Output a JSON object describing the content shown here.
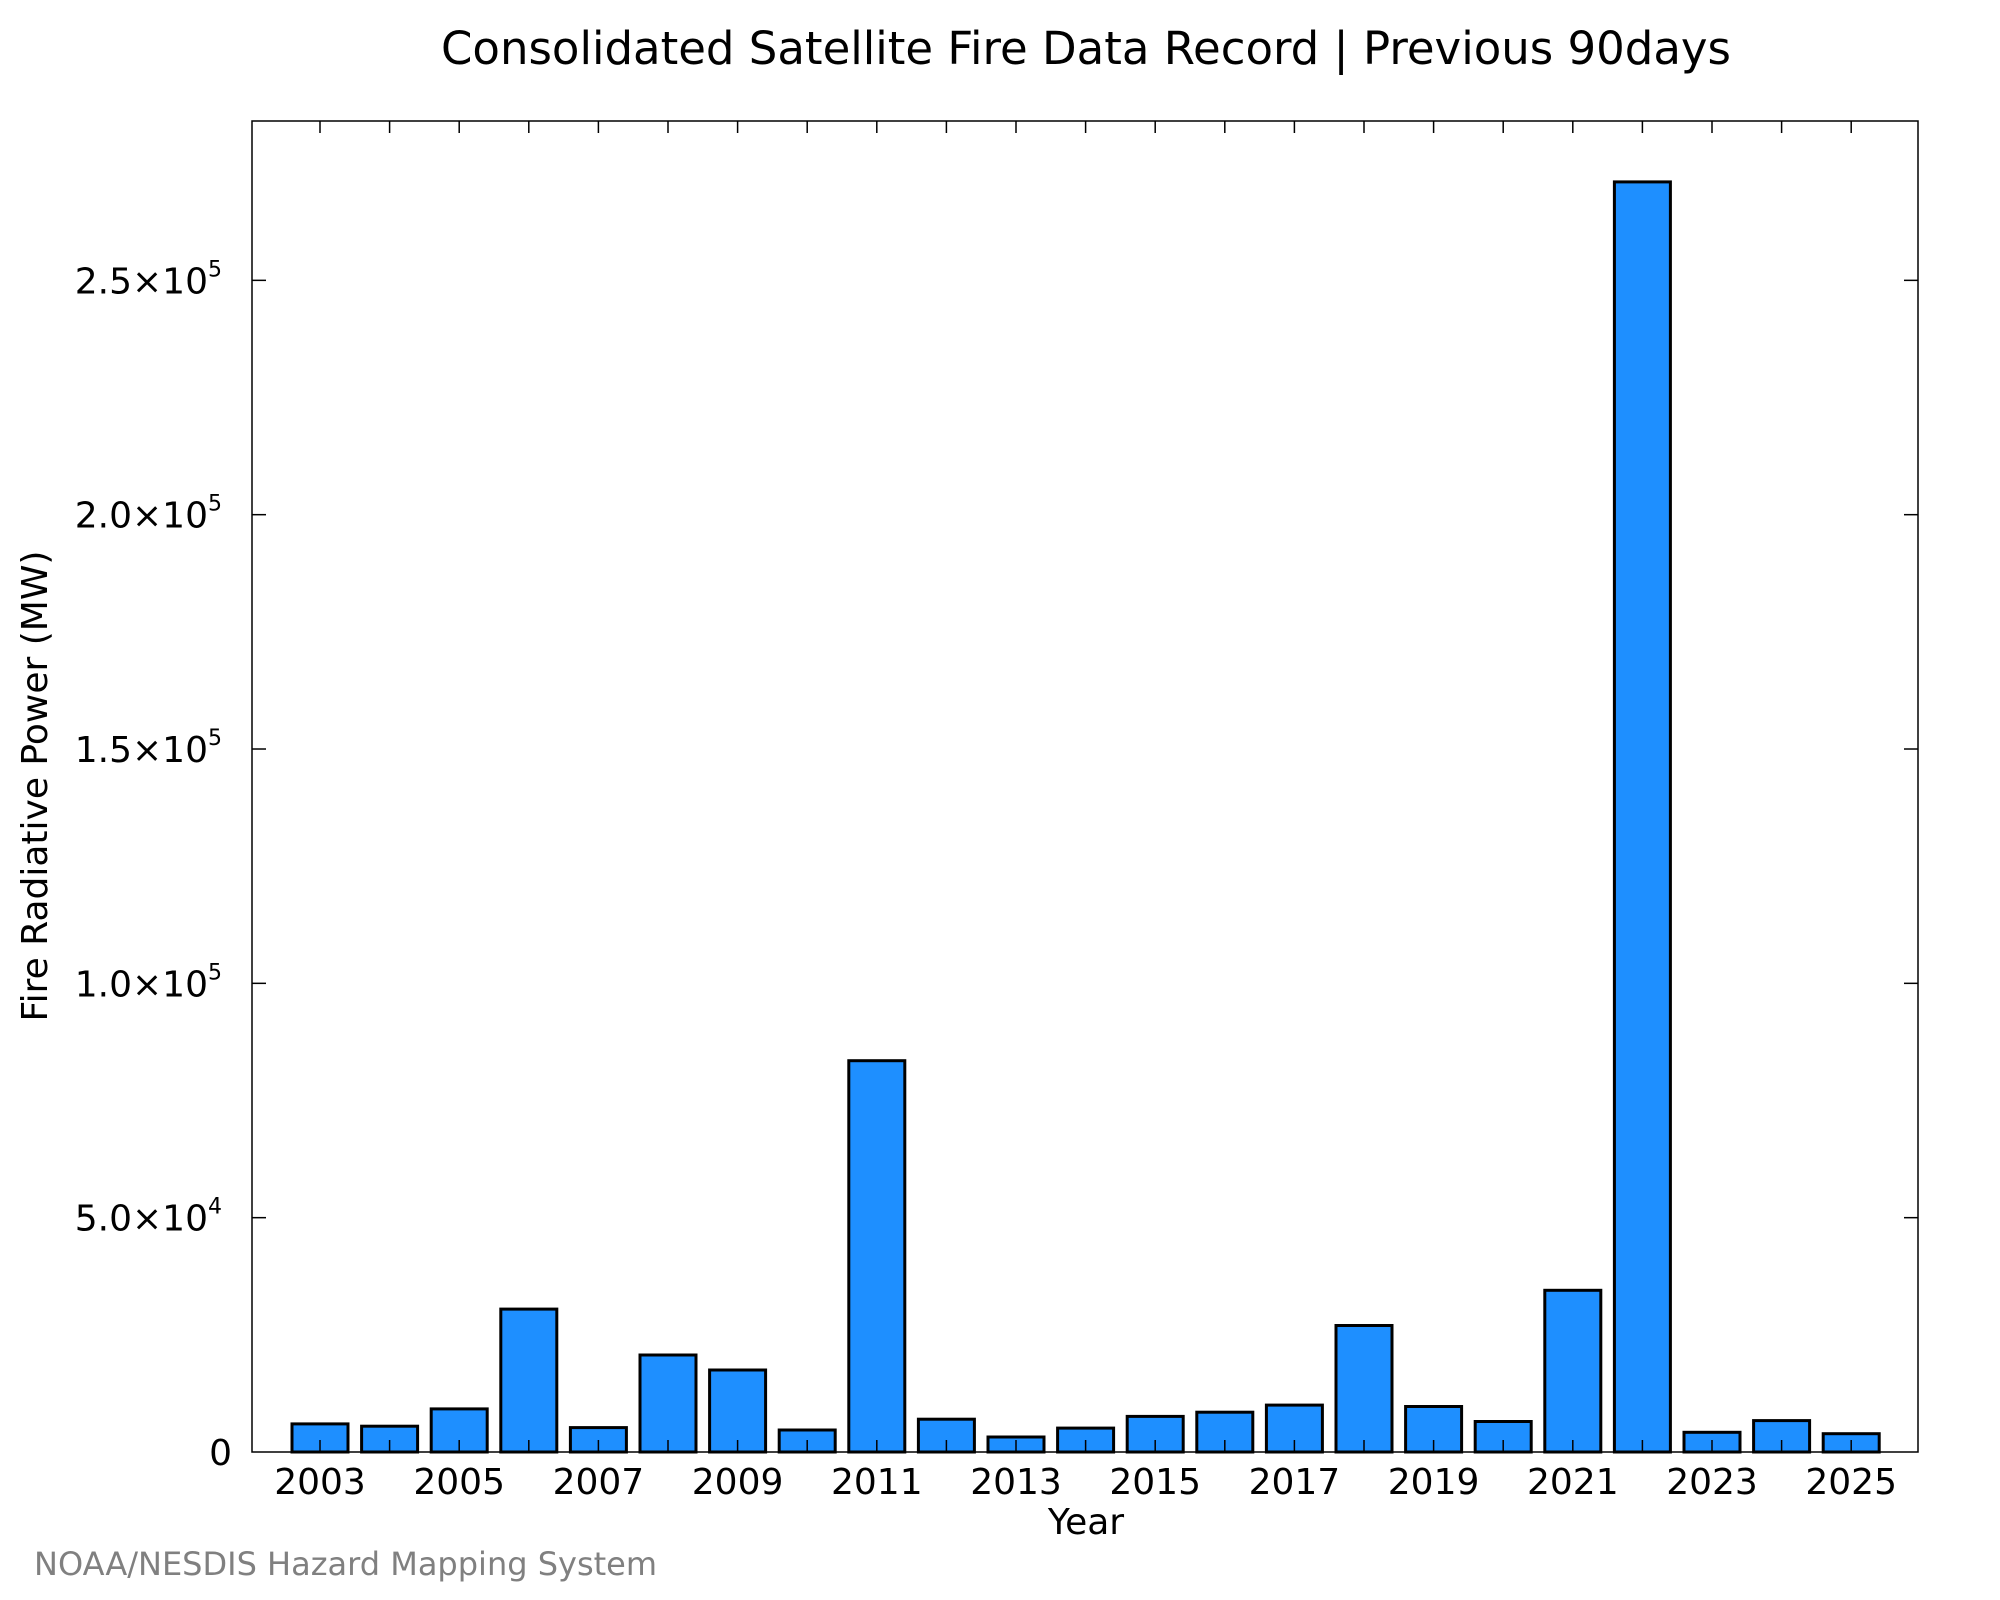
{
  "chart_data": {
    "type": "bar",
    "title": "Consolidated Satellite Fire Data Record | Previous 90days",
    "xlabel": "Year",
    "ylabel": "Fire Radiative Power (MW)",
    "categories": [
      "2003",
      "2004",
      "2005",
      "2006",
      "2007",
      "2008",
      "2009",
      "2010",
      "2011",
      "2012",
      "2013",
      "2014",
      "2015",
      "2016",
      "2017",
      "2018",
      "2019",
      "2020",
      "2021",
      "2022",
      "2023",
      "2024",
      "2025"
    ],
    "values": [
      6000,
      5500,
      9200,
      30500,
      5200,
      20700,
      17500,
      4700,
      83500,
      7000,
      3200,
      5100,
      7600,
      8500,
      10000,
      27000,
      9700,
      6500,
      34500,
      271000,
      4200,
      6700,
      3900
    ],
    "ylim": [
      0,
      284000
    ],
    "bar_color": "#1e8fff",
    "xticks": [
      "2003",
      "2005",
      "2007",
      "2009",
      "2011",
      "2013",
      "2015",
      "2017",
      "2019",
      "2021",
      "2023",
      "2025"
    ],
    "yticks": [
      {
        "value": 0,
        "mantissa": "0",
        "exp": ""
      },
      {
        "value": 50000,
        "mantissa": "5.0×10",
        "exp": "4"
      },
      {
        "value": 100000,
        "mantissa": "1.0×10",
        "exp": "5"
      },
      {
        "value": 150000,
        "mantissa": "1.5×10",
        "exp": "5"
      },
      {
        "value": 200000,
        "mantissa": "2.0×10",
        "exp": "5"
      },
      {
        "value": 250000,
        "mantissa": "2.5×10",
        "exp": "5"
      }
    ],
    "grid": false,
    "legend": "none"
  },
  "credit": "NOAA/NESDIS Hazard Mapping System"
}
